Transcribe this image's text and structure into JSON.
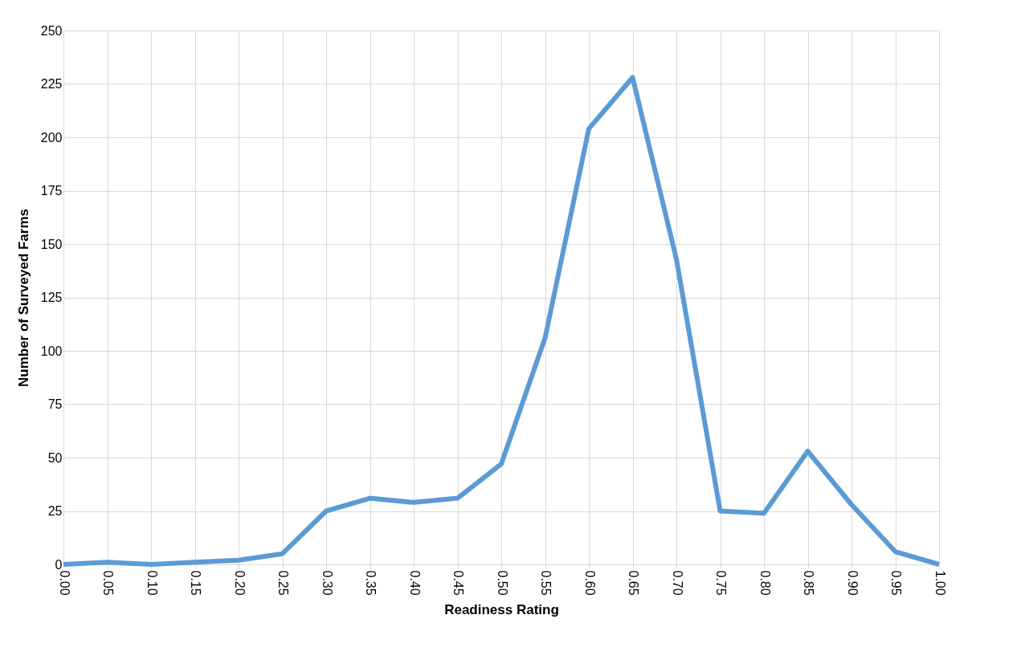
{
  "chart_data": {
    "type": "line",
    "xlabel": "Readiness Rating",
    "ylabel": "Number of Surveyed Farms",
    "categories": [
      "0.00",
      "0.05",
      "0.10",
      "0.15",
      "0.20",
      "0.25",
      "0.30",
      "0.35",
      "0.40",
      "0.45",
      "0.50",
      "0.55",
      "0.60",
      "0.65",
      "0.70",
      "0.75",
      "0.80",
      "0.85",
      "0.90",
      "0.95",
      "1.00"
    ],
    "series": [
      {
        "color": "#5b9bd5",
        "values": [
          0,
          1,
          0,
          1,
          2,
          5,
          25,
          31,
          29,
          31,
          47,
          106,
          204,
          228,
          143,
          25,
          24,
          53,
          28,
          6,
          0
        ]
      }
    ],
    "ylim": [
      0,
      250
    ],
    "yticks": [
      0,
      25,
      50,
      75,
      100,
      125,
      150,
      175,
      200,
      225,
      250
    ],
    "grid": true,
    "marker": "none",
    "line_style": "solid"
  }
}
